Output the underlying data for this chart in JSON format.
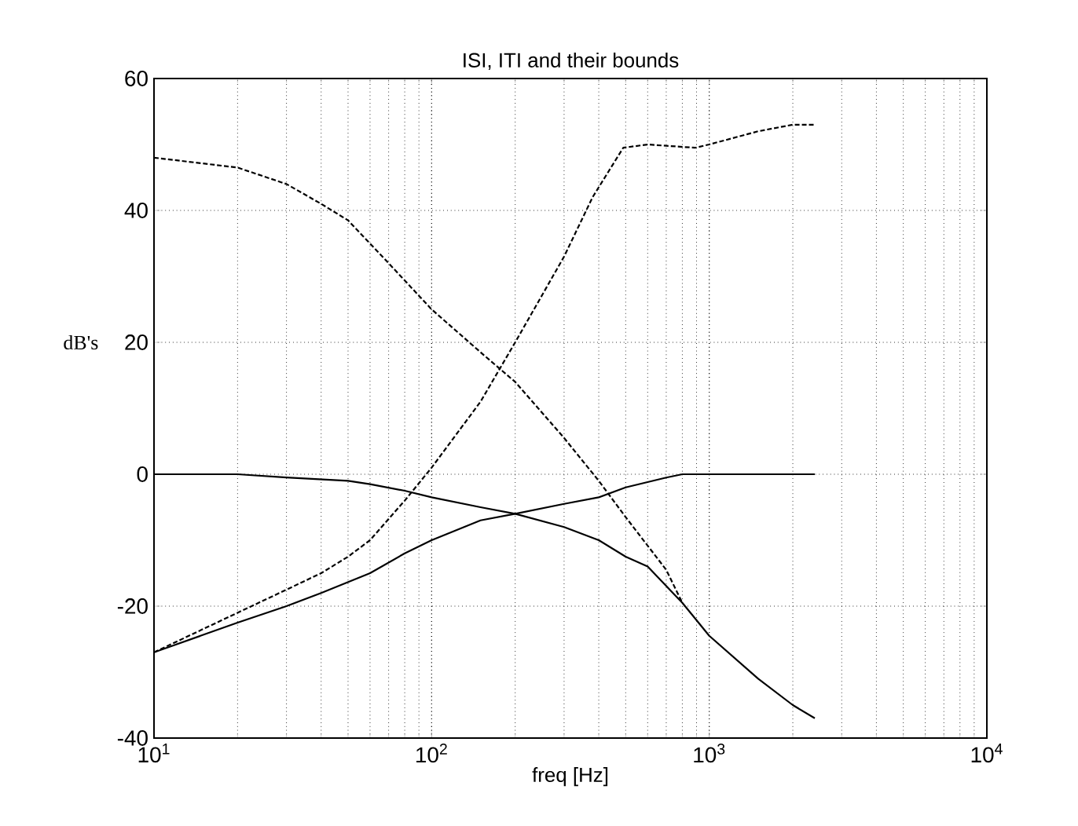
{
  "chart_data": {
    "type": "line",
    "title": "ISI, ITI and their bounds",
    "xlabel": "freq [Hz]",
    "ylabel": "dB's",
    "log": "x",
    "grid": true,
    "xlim": [
      10,
      10000
    ],
    "ylim": [
      -40,
      60
    ],
    "xticks": [
      {
        "value": 10,
        "label": "10$^{1}$"
      },
      {
        "value": 100,
        "label": "10$^{2}$"
      },
      {
        "value": 1000,
        "label": "10$^{3}$"
      },
      {
        "value": 10000,
        "label": "10$^{4}$"
      }
    ],
    "yticks": [
      -40,
      -20,
      0,
      20,
      40,
      60
    ],
    "series": [
      {
        "color": "#000000",
        "line_style": "dashed",
        "x": [
          10,
          20,
          30,
          40,
          50,
          70,
          100,
          150,
          200,
          300,
          400,
          500,
          700,
          800
        ],
        "values": [
          48,
          46.5,
          44,
          41,
          38.5,
          32,
          25,
          18.5,
          14,
          5.5,
          -1,
          -6.5,
          -14.5,
          -19.5
        ]
      },
      {
        "color": "#000000",
        "line_style": "dashed",
        "x": [
          10,
          20,
          30,
          40,
          50,
          60,
          80,
          100,
          150,
          200,
          300,
          380,
          490,
          600,
          890,
          1000,
          1500,
          2000,
          2400
        ],
        "values": [
          -27,
          -21,
          -17.5,
          -15,
          -12.5,
          -10,
          -4,
          1,
          11,
          20,
          33,
          42,
          49.5,
          50,
          49.5,
          50,
          52,
          53,
          53
        ]
      },
      {
        "color": "#000000",
        "line_style": "solid",
        "x": [
          10,
          20,
          30,
          50,
          60,
          80,
          100,
          150,
          200,
          300,
          400,
          500,
          600,
          800,
          1000,
          1500,
          2000,
          2400
        ],
        "values": [
          0,
          0,
          -0.5,
          -1,
          -1.5,
          -2.5,
          -3.5,
          -5,
          -6,
          -8,
          -10,
          -12.5,
          -14,
          -19.5,
          -24.5,
          -31,
          -35,
          -37
        ]
      },
      {
        "color": "#000000",
        "line_style": "solid",
        "x": [
          10,
          20,
          30,
          40,
          60,
          80,
          100,
          150,
          200,
          300,
          400,
          500,
          700,
          800,
          1000,
          2400
        ],
        "values": [
          -27,
          -22.5,
          -20,
          -18,
          -15,
          -12,
          -10,
          -7,
          -6,
          -4.5,
          -3.5,
          -2,
          -0.5,
          0,
          0,
          0
        ]
      }
    ]
  }
}
